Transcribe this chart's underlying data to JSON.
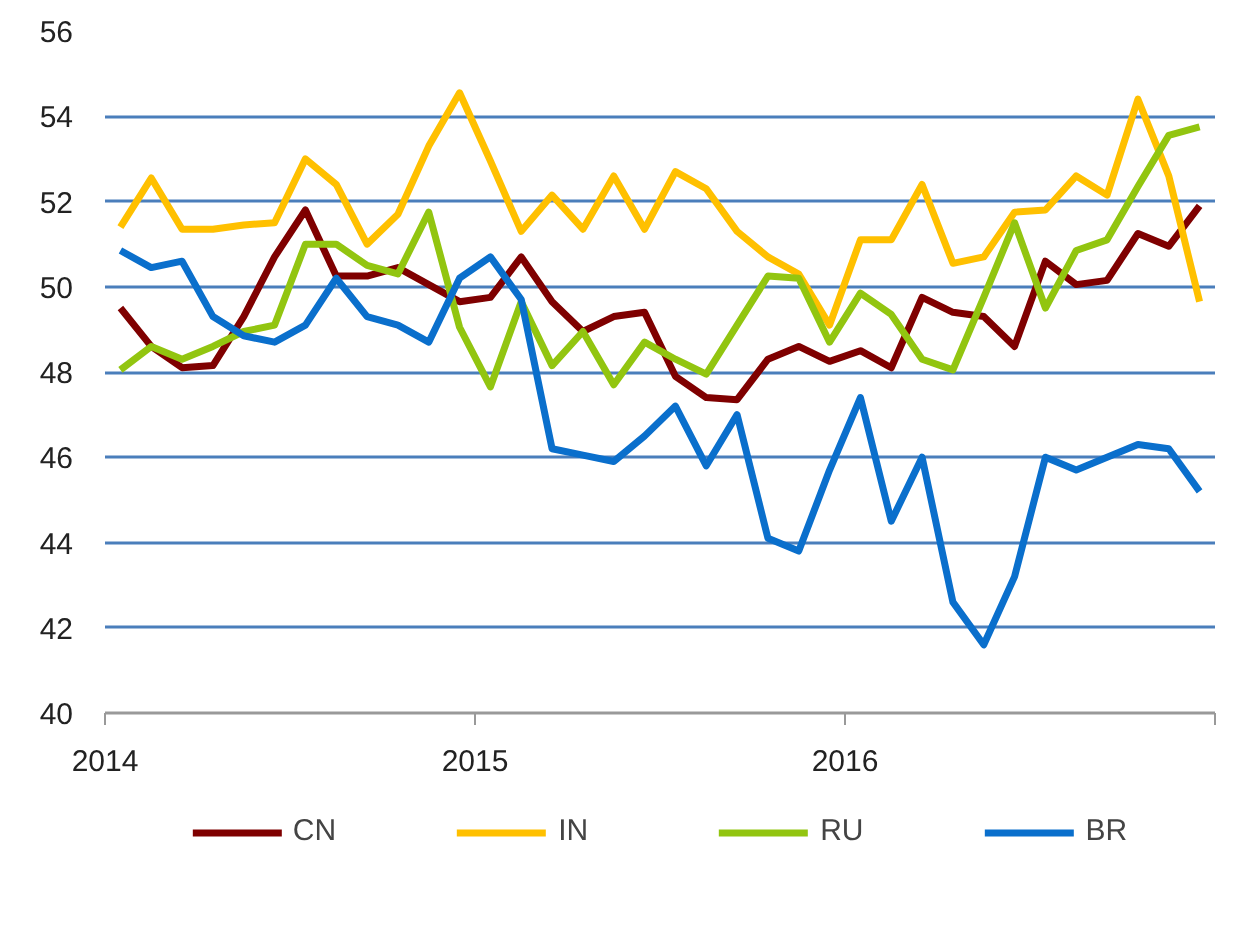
{
  "chart_data": {
    "type": "line",
    "x": [
      2014.0417,
      2014.125,
      2014.2083,
      2014.2917,
      2014.375,
      2014.4583,
      2014.5417,
      2014.625,
      2014.7083,
      2014.7917,
      2014.875,
      2014.9583,
      2015.0417,
      2015.125,
      2015.2083,
      2015.2917,
      2015.375,
      2015.4583,
      2015.5417,
      2015.625,
      2015.7083,
      2015.7917,
      2015.875,
      2015.9583,
      2016.0417,
      2016.125,
      2016.2083,
      2016.2917,
      2016.375,
      2016.4583,
      2016.5417,
      2016.625,
      2016.7083,
      2016.7917,
      2016.875,
      2016.9583
    ],
    "series": [
      {
        "name": "CN",
        "color": "#7f0000",
        "values": [
          49.5,
          48.6,
          48.1,
          48.15,
          49.3,
          50.7,
          51.8,
          50.25,
          50.25,
          50.45,
          50.05,
          49.65,
          49.75,
          50.7,
          49.65,
          48.95,
          49.3,
          49.4,
          47.9,
          47.4,
          47.35,
          48.3,
          48.6,
          48.25,
          48.5,
          48.1,
          49.75,
          49.4,
          49.3,
          48.6,
          50.6,
          50.05,
          50.15,
          51.25,
          50.95,
          51.9
        ]
      },
      {
        "name": "IN",
        "color": "#ffc000",
        "values": [
          51.4,
          52.55,
          51.35,
          51.35,
          51.45,
          51.5,
          53.0,
          52.4,
          51.0,
          51.7,
          53.3,
          54.55,
          52.95,
          51.3,
          52.15,
          51.35,
          52.6,
          51.35,
          52.7,
          52.3,
          51.3,
          50.7,
          50.3,
          49.1,
          51.1,
          51.1,
          52.4,
          50.55,
          50.7,
          51.75,
          51.8,
          52.6,
          52.15,
          54.4,
          52.6,
          49.65
        ]
      },
      {
        "name": "RU",
        "color": "#92c510",
        "values": [
          48.05,
          48.6,
          48.3,
          48.6,
          48.95,
          49.1,
          51.0,
          51.0,
          50.5,
          50.3,
          51.75,
          49.05,
          47.65,
          49.65,
          48.15,
          48.95,
          47.7,
          48.7,
          48.3,
          47.95,
          49.1,
          50.25,
          50.2,
          48.7,
          49.85,
          49.35,
          48.3,
          48.05,
          49.75,
          51.5,
          49.5,
          50.85,
          51.1,
          52.35,
          53.55,
          53.75
        ]
      },
      {
        "name": "BR",
        "color": "#0a6fcc",
        "values": [
          50.85,
          50.45,
          50.6,
          49.3,
          48.85,
          48.7,
          49.1,
          50.2,
          49.3,
          49.1,
          48.7,
          50.2,
          50.7,
          49.7,
          46.2,
          46.05,
          45.9,
          46.5,
          47.2,
          45.8,
          47.0,
          44.1,
          43.8,
          45.7,
          47.4,
          44.5,
          46.0,
          42.6,
          41.6,
          43.2,
          46.0,
          45.7,
          46.0,
          46.3,
          46.2,
          45.2
        ]
      }
    ],
    "xlim": [
      2014,
      2017
    ],
    "xticks": [
      2014,
      2015,
      2016,
      {
        "value": 2017,
        "label": null
      }
    ],
    "ylim": [
      40,
      56
    ],
    "yticks": [
      40,
      42,
      44,
      46,
      48,
      50,
      52,
      54,
      56
    ],
    "grid": "y",
    "legend": "bottom",
    "marker": "none",
    "line_style": "solid"
  }
}
